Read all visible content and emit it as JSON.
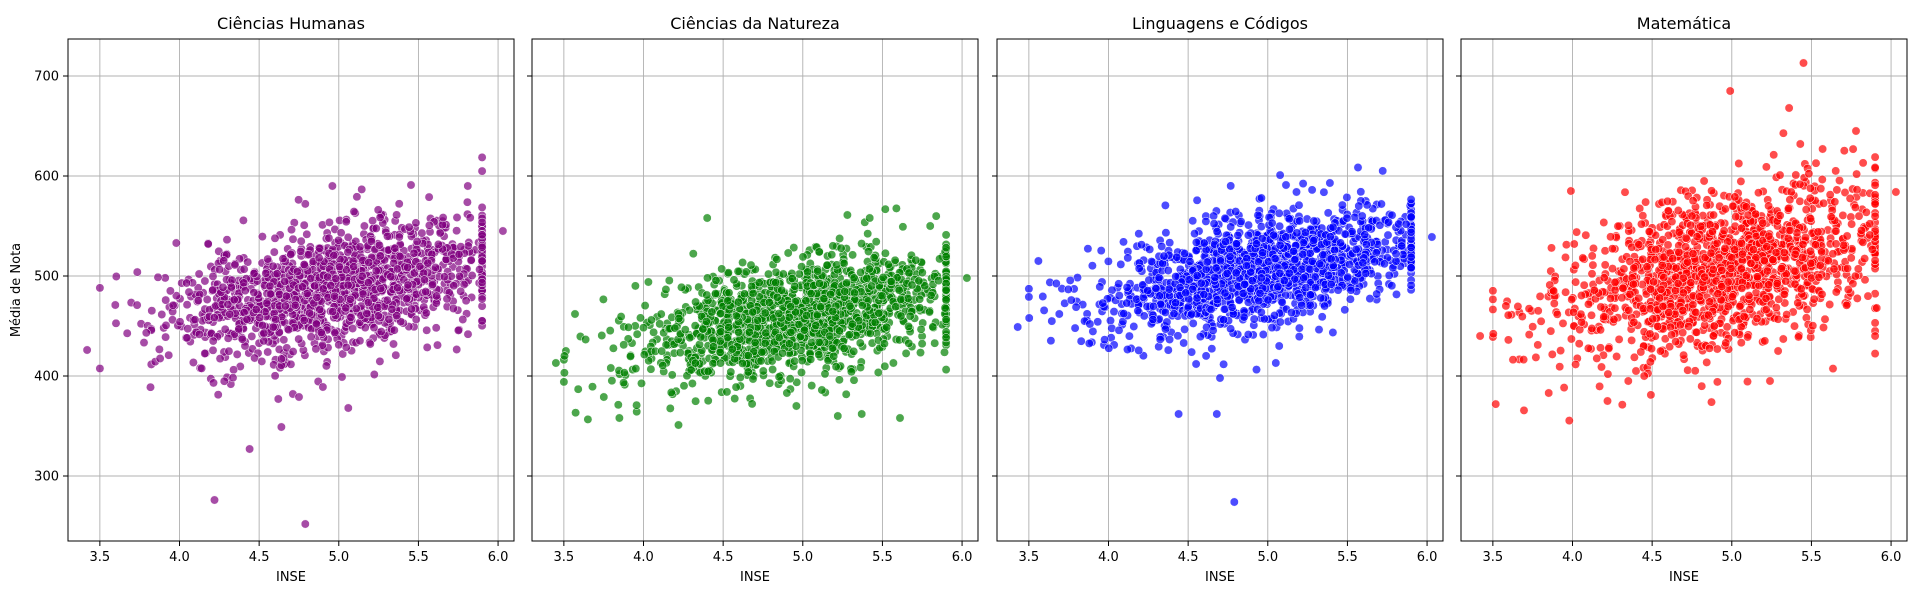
{
  "chart_data": [
    {
      "type": "scatter",
      "title": "Ciências Humanas",
      "xlabel": "INSE",
      "ylabel": "Média de Nota",
      "color": "#800080",
      "xlim": [
        3.3,
        6.1
      ],
      "ylim": [
        235,
        737
      ],
      "xticks": [
        "3.5",
        "4.0",
        "4.5",
        "5.0",
        "5.5",
        "6.0"
      ],
      "yticks": [
        "300",
        "400",
        "500",
        "600",
        "700"
      ],
      "grid": true,
      "cluster": {
        "x_range": [
          3.5,
          5.9
        ],
        "y_at_x_start": 445,
        "y_at_x_end": 515,
        "y_spread": 30,
        "count": 1500,
        "seed": 11
      },
      "outliers": [
        [
          4.22,
          276
        ],
        [
          4.79,
          252
        ],
        [
          4.44,
          327
        ],
        [
          4.64,
          349
        ],
        [
          4.96,
          590
        ],
        [
          5.81,
          590
        ],
        [
          6.03,
          545
        ],
        [
          3.42,
          426
        ],
        [
          4.62,
          377
        ],
        [
          4.75,
          379
        ],
        [
          5.06,
          368
        ],
        [
          4.9,
          389
        ],
        [
          5.02,
          399
        ],
        [
          3.98,
          533
        ],
        [
          4.18,
          532
        ]
      ]
    },
    {
      "type": "scatter",
      "title": "Ciências da Natureza",
      "xlabel": "INSE",
      "ylabel": "",
      "color": "#008000",
      "xlim": [
        3.3,
        6.1
      ],
      "ylim": [
        235,
        737
      ],
      "xticks": [
        "3.5",
        "4.0",
        "4.5",
        "5.0",
        "5.5",
        "6.0"
      ],
      "yticks": [
        "300",
        "400",
        "500",
        "600",
        "700"
      ],
      "grid": true,
      "cluster": {
        "x_range": [
          3.5,
          5.9
        ],
        "y_at_x_start": 415,
        "y_at_x_end": 485,
        "y_spread": 28,
        "count": 1500,
        "seed": 23
      },
      "outliers": [
        [
          4.22,
          351
        ],
        [
          4.96,
          370
        ],
        [
          5.22,
          360
        ],
        [
          5.37,
          362
        ],
        [
          5.61,
          358
        ],
        [
          4.4,
          558
        ],
        [
          5.28,
          561
        ],
        [
          5.42,
          558
        ],
        [
          5.8,
          550
        ],
        [
          6.03,
          498
        ],
        [
          3.45,
          413
        ],
        [
          3.57,
          462
        ],
        [
          4.9,
          383
        ],
        [
          5.12,
          386
        ]
      ]
    },
    {
      "type": "scatter",
      "title": "Linguagens e Códigos",
      "xlabel": "INSE",
      "ylabel": "",
      "color": "#0000ff",
      "xlim": [
        3.3,
        6.1
      ],
      "ylim": [
        235,
        737
      ],
      "xticks": [
        "3.5",
        "4.0",
        "4.5",
        "5.0",
        "5.5",
        "6.0"
      ],
      "yticks": [
        "300",
        "400",
        "500",
        "600",
        "700"
      ],
      "grid": true,
      "cluster": {
        "x_range": [
          3.5,
          5.9
        ],
        "y_at_x_start": 460,
        "y_at_x_end": 535,
        "y_spread": 27,
        "count": 1500,
        "seed": 37
      },
      "outliers": [
        [
          4.79,
          274
        ],
        [
          4.44,
          362
        ],
        [
          4.68,
          362
        ],
        [
          5.39,
          593
        ],
        [
          4.96,
          578
        ],
        [
          5.18,
          584
        ],
        [
          6.03,
          539
        ],
        [
          3.56,
          515
        ],
        [
          3.43,
          449
        ],
        [
          4.7,
          398
        ],
        [
          4.55,
          412
        ],
        [
          5.05,
          413
        ]
      ]
    },
    {
      "type": "scatter",
      "title": "Matemática",
      "xlabel": "INSE",
      "ylabel": "",
      "color": "#ff0000",
      "xlim": [
        3.3,
        6.1
      ],
      "ylim": [
        235,
        737
      ],
      "xticks": [
        "3.5",
        "4.0",
        "4.5",
        "5.0",
        "5.5",
        "6.0"
      ],
      "yticks": [
        "300",
        "400",
        "500",
        "600",
        "700"
      ],
      "grid": true,
      "cluster": {
        "x_range": [
          3.5,
          5.9
        ],
        "y_at_x_start": 455,
        "y_at_x_end": 540,
        "y_spread": 38,
        "count": 1500,
        "seed": 53
      },
      "outliers": [
        [
          5.45,
          713
        ],
        [
          4.99,
          685
        ],
        [
          5.36,
          668
        ],
        [
          5.78,
          645
        ],
        [
          5.57,
          627
        ],
        [
          5.43,
          632
        ],
        [
          4.22,
          375
        ],
        [
          5.24,
          395
        ],
        [
          3.99,
          585
        ],
        [
          6.03,
          584
        ],
        [
          5.91,
          468
        ],
        [
          4.35,
          395
        ],
        [
          4.45,
          400
        ],
        [
          3.42,
          440
        ]
      ]
    }
  ]
}
